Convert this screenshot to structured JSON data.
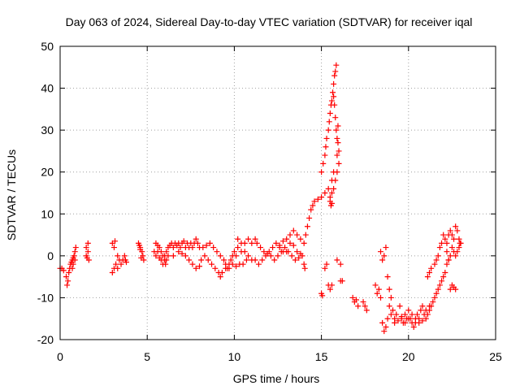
{
  "chart_data": {
    "type": "scatter",
    "title": "Day 063 of 2024, Sidereal Day-to-day VTEC variation (SDTVAR) for receiver iqal",
    "xlabel": "GPS time / hours",
    "ylabel": "SDTVAR / TECUs",
    "xlim": [
      0,
      25
    ],
    "ylim": [
      -20,
      50
    ],
    "xticks": [
      "0",
      "5",
      "10",
      "15",
      "20",
      "25"
    ],
    "yticks": [
      "-20",
      "-10",
      "0",
      "10",
      "20",
      "30",
      "40",
      "50"
    ],
    "grid": true,
    "marker": "+",
    "series": [
      {
        "name": "SDTVAR",
        "color": "#ff0000",
        "points": [
          [
            0.0,
            -3
          ],
          [
            0.1,
            -3
          ],
          [
            0.2,
            -3.5
          ],
          [
            0.35,
            -5
          ],
          [
            0.4,
            -7
          ],
          [
            0.45,
            -6
          ],
          [
            0.5,
            -4
          ],
          [
            0.55,
            -3
          ],
          [
            0.6,
            -2
          ],
          [
            0.65,
            -1.5
          ],
          [
            0.7,
            -1
          ],
          [
            0.75,
            -0.5
          ],
          [
            0.8,
            0
          ],
          [
            0.85,
            1
          ],
          [
            0.9,
            2
          ],
          [
            0.7,
            -3
          ],
          [
            0.75,
            -2
          ],
          [
            0.85,
            -1
          ],
          [
            1.5,
            0
          ],
          [
            1.5,
            2
          ],
          [
            1.6,
            3
          ],
          [
            1.6,
            1
          ],
          [
            1.65,
            -1
          ],
          [
            1.55,
            -0.5
          ],
          [
            3.0,
            3
          ],
          [
            3.1,
            2
          ],
          [
            3.15,
            3.5
          ],
          [
            3.0,
            -4
          ],
          [
            3.1,
            -3
          ],
          [
            3.2,
            -2
          ],
          [
            3.3,
            0
          ],
          [
            3.4,
            -1
          ],
          [
            3.5,
            -2
          ],
          [
            3.6,
            -1
          ],
          [
            3.7,
            0
          ],
          [
            3.75,
            -1
          ],
          [
            3.8,
            -1.5
          ],
          [
            3.3,
            -3
          ],
          [
            4.5,
            3
          ],
          [
            4.55,
            2.5
          ],
          [
            4.6,
            2
          ],
          [
            4.7,
            1
          ],
          [
            4.75,
            0
          ],
          [
            4.8,
            -1
          ],
          [
            4.65,
            -0.5
          ],
          [
            4.6,
            1.5
          ],
          [
            5.4,
            1
          ],
          [
            5.5,
            0
          ],
          [
            5.6,
            1
          ],
          [
            5.7,
            2
          ],
          [
            5.8,
            1
          ],
          [
            5.9,
            0
          ],
          [
            6.0,
            -1
          ],
          [
            6.05,
            -2
          ],
          [
            6.1,
            1
          ],
          [
            6.2,
            2
          ],
          [
            6.3,
            2.5
          ],
          [
            6.4,
            3
          ],
          [
            6.5,
            2
          ],
          [
            6.6,
            3
          ],
          [
            6.7,
            2.5
          ],
          [
            6.8,
            3
          ],
          [
            6.9,
            2
          ],
          [
            7.0,
            3
          ],
          [
            7.1,
            3.5
          ],
          [
            7.2,
            2
          ],
          [
            7.3,
            3
          ],
          [
            7.4,
            2
          ],
          [
            7.5,
            3
          ],
          [
            7.6,
            2
          ],
          [
            7.7,
            3
          ],
          [
            7.8,
            4
          ],
          [
            7.9,
            3
          ],
          [
            8.0,
            2
          ],
          [
            5.5,
            3
          ],
          [
            5.6,
            2.5
          ],
          [
            5.7,
            -0.5
          ],
          [
            5.8,
            -1
          ],
          [
            5.9,
            -2
          ],
          [
            6.0,
            0
          ],
          [
            6.1,
            -1
          ],
          [
            6.2,
            0
          ],
          [
            6.5,
            0
          ],
          [
            6.8,
            1
          ],
          [
            7.0,
            0.5
          ],
          [
            7.2,
            0
          ],
          [
            7.4,
            -1
          ],
          [
            7.6,
            -2
          ],
          [
            7.8,
            -3
          ],
          [
            8.0,
            -2.5
          ],
          [
            8.1,
            -1
          ],
          [
            8.2,
            2
          ],
          [
            8.4,
            2.5
          ],
          [
            8.6,
            3
          ],
          [
            8.8,
            2
          ],
          [
            9.0,
            1
          ],
          [
            9.2,
            0
          ],
          [
            9.4,
            -1
          ],
          [
            9.5,
            -2
          ],
          [
            9.6,
            -3
          ],
          [
            9.7,
            -2
          ],
          [
            9.8,
            -1
          ],
          [
            9.9,
            0
          ],
          [
            10.0,
            1
          ],
          [
            10.1,
            0
          ],
          [
            10.2,
            2
          ],
          [
            10.4,
            1
          ],
          [
            8.3,
            0
          ],
          [
            8.5,
            -1
          ],
          [
            8.7,
            -2
          ],
          [
            8.9,
            -3
          ],
          [
            9.1,
            -4
          ],
          [
            9.2,
            -5
          ],
          [
            9.3,
            -4
          ],
          [
            9.5,
            -3
          ],
          [
            9.7,
            -3
          ],
          [
            9.9,
            -2
          ],
          [
            10.1,
            -2.5
          ],
          [
            10.3,
            -2
          ],
          [
            10.5,
            -2
          ],
          [
            10.7,
            -1
          ],
          [
            10.6,
            3
          ],
          [
            10.8,
            4
          ],
          [
            11.0,
            3
          ],
          [
            11.2,
            4
          ],
          [
            11.3,
            3
          ],
          [
            11.5,
            2
          ],
          [
            11.7,
            1
          ],
          [
            11.9,
            0.5
          ],
          [
            12.1,
            0
          ],
          [
            12.3,
            -1
          ],
          [
            12.5,
            0
          ],
          [
            12.7,
            1
          ],
          [
            12.9,
            2
          ],
          [
            13.1,
            1
          ],
          [
            13.3,
            0
          ],
          [
            13.5,
            -1
          ],
          [
            13.7,
            -0.5
          ],
          [
            13.9,
            0
          ],
          [
            10.2,
            4
          ],
          [
            10.4,
            3
          ],
          [
            10.6,
            1
          ],
          [
            10.8,
            0
          ],
          [
            11.0,
            -1
          ],
          [
            11.2,
            -1
          ],
          [
            11.4,
            -2
          ],
          [
            11.6,
            -1
          ],
          [
            11.8,
            0
          ],
          [
            12.0,
            1
          ],
          [
            12.2,
            2
          ],
          [
            12.4,
            3
          ],
          [
            12.6,
            2
          ],
          [
            12.8,
            1
          ],
          [
            13.0,
            1
          ],
          [
            13.2,
            3
          ],
          [
            13.4,
            2.5
          ],
          [
            13.6,
            1
          ],
          [
            13.8,
            0.5
          ],
          [
            12.6,
            2.5
          ],
          [
            12.8,
            3.5
          ],
          [
            13.0,
            4
          ],
          [
            13.2,
            5
          ],
          [
            13.4,
            6
          ],
          [
            13.6,
            5
          ],
          [
            13.8,
            4
          ],
          [
            14.0,
            3
          ],
          [
            14.1,
            5
          ],
          [
            14.2,
            7
          ],
          [
            14.3,
            9
          ],
          [
            14.4,
            11
          ],
          [
            14.5,
            12
          ],
          [
            14.6,
            13
          ],
          [
            14.8,
            13.5
          ],
          [
            15.0,
            14
          ],
          [
            15.2,
            15
          ],
          [
            15.4,
            16
          ],
          [
            15.6,
            18
          ],
          [
            15.7,
            20
          ],
          [
            14.0,
            -2
          ],
          [
            14.05,
            -3
          ],
          [
            15.0,
            -9
          ],
          [
            15.05,
            -9.5
          ],
          [
            15.2,
            -3
          ],
          [
            15.3,
            -2
          ],
          [
            15.4,
            -7
          ],
          [
            15.5,
            -8
          ],
          [
            15.6,
            -7
          ],
          [
            15.9,
            -1
          ],
          [
            16.1,
            -6
          ],
          [
            15.0,
            20
          ],
          [
            15.1,
            22
          ],
          [
            15.2,
            24
          ],
          [
            15.25,
            26
          ],
          [
            15.3,
            28
          ],
          [
            15.4,
            30
          ],
          [
            15.45,
            32
          ],
          [
            15.5,
            34
          ],
          [
            15.55,
            36
          ],
          [
            15.6,
            37
          ],
          [
            15.65,
            39
          ],
          [
            15.7,
            41
          ],
          [
            15.75,
            43
          ],
          [
            15.8,
            44
          ],
          [
            15.85,
            45.5
          ],
          [
            15.7,
            38
          ],
          [
            15.75,
            36
          ],
          [
            15.8,
            33
          ],
          [
            15.85,
            30
          ],
          [
            15.9,
            28
          ],
          [
            15.95,
            27
          ],
          [
            16.0,
            25
          ],
          [
            16.0,
            22
          ],
          [
            15.9,
            20
          ],
          [
            15.8,
            18
          ],
          [
            15.7,
            16
          ],
          [
            15.6,
            15
          ],
          [
            15.5,
            14
          ],
          [
            15.5,
            13
          ],
          [
            15.55,
            12
          ],
          [
            15.6,
            12.5
          ],
          [
            15.9,
            24
          ],
          [
            15.95,
            31
          ],
          [
            16.1,
            -2
          ],
          [
            16.2,
            -6
          ],
          [
            16.8,
            -10
          ],
          [
            16.9,
            -11
          ],
          [
            17.0,
            -10.5
          ],
          [
            17.1,
            -12
          ],
          [
            17.4,
            -11
          ],
          [
            17.5,
            -12
          ],
          [
            17.6,
            -13
          ],
          [
            18.1,
            -7
          ],
          [
            18.2,
            -9
          ],
          [
            18.3,
            -8
          ],
          [
            18.4,
            -10
          ],
          [
            18.4,
            1
          ],
          [
            18.5,
            -1
          ],
          [
            18.6,
            0
          ],
          [
            18.7,
            2
          ],
          [
            18.8,
            -5
          ],
          [
            18.9,
            -8
          ],
          [
            18.9,
            -12
          ],
          [
            18.5,
            -16
          ],
          [
            18.6,
            -18
          ],
          [
            18.7,
            -17
          ],
          [
            18.8,
            -15
          ],
          [
            19.0,
            -10
          ],
          [
            19.1,
            -13
          ],
          [
            19.2,
            -16
          ],
          [
            19.3,
            -14
          ],
          [
            19.5,
            -12
          ],
          [
            19.6,
            -15
          ],
          [
            19.7,
            -16
          ],
          [
            19.8,
            -14
          ],
          [
            19.9,
            -15
          ],
          [
            20.0,
            -13
          ],
          [
            20.1,
            -15
          ],
          [
            20.2,
            -16
          ],
          [
            20.3,
            -17
          ],
          [
            20.4,
            -16
          ],
          [
            20.5,
            -14
          ],
          [
            20.6,
            -15
          ],
          [
            20.7,
            -13
          ],
          [
            20.8,
            -12
          ],
          [
            20.9,
            -14
          ],
          [
            21.0,
            -15
          ],
          [
            21.1,
            -14
          ],
          [
            21.2,
            -13
          ],
          [
            21.3,
            -12
          ],
          [
            21.4,
            -11
          ],
          [
            21.5,
            -10
          ],
          [
            21.6,
            -9
          ],
          [
            21.7,
            -8
          ],
          [
            21.8,
            -7
          ],
          [
            21.9,
            -6
          ],
          [
            22.0,
            -5
          ],
          [
            22.1,
            -4
          ],
          [
            22.2,
            -2
          ],
          [
            22.3,
            -1
          ],
          [
            22.4,
            -8
          ],
          [
            22.5,
            -7
          ],
          [
            22.6,
            -7.5
          ],
          [
            22.7,
            -8
          ],
          [
            19.0,
            -14
          ],
          [
            19.2,
            -15
          ],
          [
            19.4,
            -15.5
          ],
          [
            19.6,
            -14.5
          ],
          [
            19.8,
            -16
          ],
          [
            20.0,
            -15
          ],
          [
            20.2,
            -14
          ],
          [
            20.4,
            -15
          ],
          [
            20.6,
            -16
          ],
          [
            20.8,
            -15.5
          ],
          [
            21.0,
            -13
          ],
          [
            21.2,
            -12
          ],
          [
            21.1,
            -5
          ],
          [
            21.2,
            -4
          ],
          [
            21.3,
            -3
          ],
          [
            21.5,
            -2
          ],
          [
            21.6,
            -1
          ],
          [
            21.7,
            0
          ],
          [
            21.8,
            2
          ],
          [
            21.9,
            3
          ],
          [
            22.0,
            5
          ],
          [
            22.1,
            4
          ],
          [
            22.2,
            3
          ],
          [
            22.3,
            5
          ],
          [
            22.4,
            6
          ],
          [
            22.5,
            5
          ],
          [
            22.6,
            4
          ],
          [
            22.7,
            7
          ],
          [
            22.8,
            6
          ],
          [
            22.9,
            4
          ],
          [
            22.95,
            3
          ],
          [
            22.2,
            1
          ],
          [
            22.3,
            -1
          ],
          [
            22.4,
            0
          ],
          [
            22.5,
            2
          ],
          [
            22.6,
            1
          ],
          [
            22.7,
            0
          ],
          [
            22.8,
            1
          ],
          [
            22.9,
            2
          ],
          [
            23.0,
            3
          ]
        ]
      }
    ]
  }
}
